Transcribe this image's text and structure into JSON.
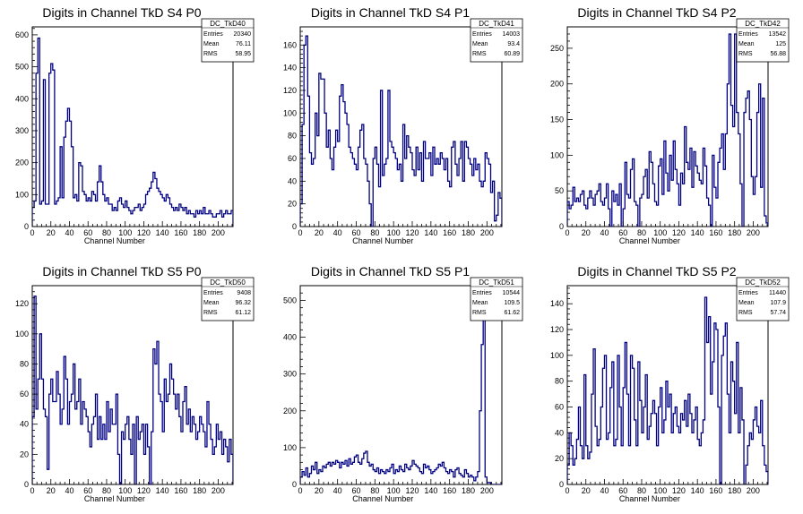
{
  "chart_data": [
    {
      "type": "histogram",
      "title": "Digits in Channel TkD S4 P0",
      "xlabel": "Channel Number",
      "xlim": [
        0,
        216
      ],
      "ylim": [
        0,
        625
      ],
      "xticks": [
        0,
        20,
        40,
        60,
        80,
        100,
        120,
        140,
        160,
        180,
        200
      ],
      "yticks": [
        0,
        100,
        200,
        300,
        400,
        500,
        600
      ],
      "stats": {
        "name": "DC_TkD40",
        "rows": [
          [
            "Entries",
            "20340"
          ],
          [
            "Mean",
            "76.11"
          ],
          [
            "RMS",
            "58.95"
          ]
        ]
      },
      "series": [
        {
          "color": "#000080",
          "bin_width": 2,
          "values": [
            60,
            80,
            480,
            590,
            70,
            80,
            460,
            70,
            70,
            480,
            510,
            490,
            70,
            80,
            90,
            250,
            90,
            280,
            330,
            370,
            330,
            250,
            90,
            100,
            80,
            200,
            190,
            110,
            100,
            80,
            90,
            80,
            110,
            100,
            80,
            140,
            190,
            140,
            100,
            80,
            90,
            70,
            70,
            50,
            60,
            50,
            80,
            90,
            70,
            60,
            80,
            60,
            50,
            40,
            50,
            60,
            60,
            70,
            50,
            60,
            70,
            100,
            110,
            120,
            140,
            170,
            150,
            120,
            110,
            100,
            90,
            80,
            100,
            90,
            70,
            60,
            50,
            60,
            50,
            70,
            60,
            50,
            60,
            40,
            50,
            40,
            40,
            30,
            50,
            40,
            50,
            40,
            60,
            40,
            40,
            50,
            40,
            30,
            30,
            40,
            40,
            50,
            30,
            40,
            50,
            40,
            40,
            50
          ]
        }
      ]
    },
    {
      "type": "histogram",
      "title": "Digits in Channel TkD S4 P1",
      "xlabel": "Channel Number",
      "xlim": [
        0,
        216
      ],
      "ylim": [
        0,
        176
      ],
      "xticks": [
        0,
        20,
        40,
        60,
        80,
        100,
        120,
        140,
        160,
        180,
        200
      ],
      "yticks": [
        0,
        20,
        40,
        60,
        80,
        100,
        120,
        140,
        160
      ],
      "stats": {
        "name": "DC_TkD41",
        "rows": [
          [
            "Entries",
            "14003"
          ],
          [
            "Mean",
            "93.4"
          ],
          [
            "RMS",
            "60.89"
          ]
        ]
      },
      "series": [
        {
          "color": "#000080",
          "bin_width": 2,
          "values": [
            20,
            90,
            160,
            168,
            115,
            65,
            55,
            60,
            100,
            80,
            135,
            130,
            130,
            100,
            70,
            85,
            60,
            50,
            70,
            85,
            75,
            115,
            125,
            110,
            100,
            90,
            70,
            65,
            60,
            55,
            50,
            70,
            85,
            90,
            60,
            55,
            40,
            20,
            0,
            60,
            70,
            55,
            35,
            120,
            45,
            55,
            60,
            120,
            75,
            70,
            65,
            60,
            50,
            55,
            40,
            90,
            60,
            80,
            70,
            65,
            50,
            45,
            70,
            50,
            65,
            40,
            75,
            60,
            60,
            65,
            45,
            70,
            55,
            60,
            55,
            65,
            60,
            50,
            60,
            40,
            35,
            70,
            75,
            55,
            45,
            60,
            75,
            40,
            75,
            70,
            60,
            55,
            45,
            60,
            50,
            55,
            40,
            35,
            40,
            65,
            60,
            55,
            30,
            40,
            5,
            10,
            30,
            25
          ]
        }
      ]
    },
    {
      "type": "histogram",
      "title": "Digits in Channel TkD S4 P2",
      "xlabel": "Channel Number",
      "xlim": [
        0,
        216
      ],
      "ylim": [
        0,
        280
      ],
      "xticks": [
        0,
        20,
        40,
        60,
        80,
        100,
        120,
        140,
        160,
        180,
        200
      ],
      "yticks": [
        0,
        50,
        100,
        150,
        200,
        250
      ],
      "stats": {
        "name": "DC_TkD42",
        "rows": [
          [
            "Entries",
            "13542"
          ],
          [
            "Mean",
            "125"
          ],
          [
            "RMS",
            "56.88"
          ]
        ]
      },
      "series": [
        {
          "color": "#000080",
          "bin_width": 2,
          "values": [
            35,
            25,
            30,
            55,
            35,
            40,
            35,
            45,
            50,
            30,
            25,
            40,
            50,
            40,
            30,
            45,
            50,
            60,
            35,
            30,
            40,
            60,
            25,
            0,
            50,
            35,
            45,
            30,
            60,
            0,
            25,
            90,
            45,
            40,
            80,
            95,
            35,
            30,
            0,
            40,
            45,
            70,
            80,
            40,
            105,
            90,
            60,
            35,
            30,
            85,
            95,
            45,
            120,
            75,
            50,
            100,
            65,
            120,
            80,
            60,
            30,
            75,
            60,
            140,
            90,
            80,
            110,
            55,
            105,
            85,
            75,
            65,
            60,
            110,
            85,
            40,
            30,
            0,
            100,
            55,
            40,
            90,
            110,
            130,
            80,
            130,
            200,
            270,
            170,
            140,
            270,
            160,
            130,
            60,
            0,
            160,
            180,
            190,
            150,
            70,
            45,
            70,
            160,
            200,
            55,
            180,
            15,
            5
          ]
        }
      ]
    },
    {
      "type": "histogram",
      "title": "Digits in Channel TkD S5 P0",
      "xlabel": "Channel Number",
      "xlim": [
        0,
        216
      ],
      "ylim": [
        0,
        132
      ],
      "xticks": [
        0,
        20,
        40,
        60,
        80,
        100,
        120,
        140,
        160,
        180,
        200
      ],
      "yticks": [
        0,
        20,
        40,
        60,
        80,
        100,
        120
      ],
      "stats": {
        "name": "DC_TkD50",
        "rows": [
          [
            "Entries",
            "9408"
          ],
          [
            "Mean",
            "96.32"
          ],
          [
            "RMS",
            "61.12"
          ]
        ]
      },
      "series": [
        {
          "color": "#000080",
          "bin_width": 2,
          "values": [
            45,
            125,
            50,
            70,
            100,
            70,
            50,
            45,
            10,
            60,
            70,
            55,
            55,
            75,
            60,
            40,
            50,
            85,
            70,
            40,
            55,
            60,
            80,
            50,
            55,
            70,
            40,
            55,
            50,
            45,
            35,
            25,
            40,
            45,
            60,
            30,
            45,
            30,
            40,
            30,
            55,
            35,
            50,
            40,
            40,
            60,
            20,
            0,
            35,
            30,
            40,
            45,
            30,
            20,
            40,
            0,
            45,
            30,
            35,
            40,
            20,
            40,
            25,
            0,
            35,
            90,
            80,
            95,
            60,
            55,
            35,
            70,
            55,
            60,
            80,
            70,
            60,
            50,
            60,
            45,
            35,
            55,
            65,
            40,
            50,
            35,
            45,
            40,
            30,
            35,
            45,
            40,
            35,
            25,
            55,
            40,
            30,
            20,
            25,
            40,
            30,
            35,
            20,
            30,
            25,
            15,
            30,
            20
          ]
        }
      ]
    },
    {
      "type": "histogram",
      "title": "Digits in Channel TkD S5 P1",
      "xlabel": "Channel Number",
      "xlim": [
        0,
        216
      ],
      "ylim": [
        0,
        540
      ],
      "xticks": [
        0,
        20,
        40,
        60,
        80,
        100,
        120,
        140,
        160,
        180,
        200
      ],
      "yticks": [
        0,
        100,
        200,
        300,
        400,
        500
      ],
      "stats": {
        "name": "DC_TkD51",
        "rows": [
          [
            "Entries",
            "10544"
          ],
          [
            "Mean",
            "109.5"
          ],
          [
            "RMS",
            "61.62"
          ]
        ]
      },
      "series": [
        {
          "color": "#000080",
          "bin_width": 2,
          "values": [
            20,
            35,
            25,
            45,
            20,
            30,
            50,
            40,
            60,
            30,
            40,
            35,
            50,
            45,
            55,
            60,
            50,
            60,
            55,
            65,
            60,
            45,
            60,
            55,
            65,
            50,
            70,
            55,
            60,
            75,
            80,
            60,
            55,
            70,
            85,
            90,
            60,
            50,
            55,
            40,
            35,
            45,
            30,
            40,
            35,
            30,
            40,
            35,
            45,
            55,
            30,
            40,
            35,
            50,
            40,
            35,
            55,
            45,
            40,
            50,
            65,
            55,
            50,
            45,
            35,
            30,
            55,
            45,
            50,
            40,
            30,
            35,
            40,
            45,
            55,
            50,
            60,
            45,
            35,
            30,
            40,
            35,
            20,
            40,
            45,
            30,
            25,
            20,
            40,
            30,
            20,
            25,
            20,
            10,
            20,
            35,
            200,
            380,
            450,
            20,
            5,
            5,
            0,
            0,
            0,
            0,
            0,
            0
          ]
        }
      ]
    },
    {
      "type": "histogram",
      "title": "Digits in Channel TkD S5 P2",
      "xlabel": "Channel Number",
      "xlim": [
        0,
        216
      ],
      "ylim": [
        0,
        154
      ],
      "xticks": [
        0,
        20,
        40,
        60,
        80,
        100,
        120,
        140,
        160,
        180,
        200
      ],
      "yticks": [
        0,
        20,
        40,
        60,
        80,
        100,
        120,
        140
      ],
      "stats": {
        "name": "DC_TkD52",
        "rows": [
          [
            "Entries",
            "11440"
          ],
          [
            "Mean",
            "107.9"
          ],
          [
            "RMS",
            "57.74"
          ]
        ]
      },
      "series": [
        {
          "color": "#000080",
          "bin_width": 2,
          "values": [
            15,
            40,
            30,
            15,
            20,
            35,
            60,
            30,
            20,
            85,
            30,
            20,
            25,
            70,
            105,
            45,
            30,
            35,
            60,
            90,
            100,
            35,
            40,
            75,
            95,
            30,
            35,
            100,
            60,
            30,
            75,
            110,
            70,
            30,
            100,
            90,
            50,
            30,
            95,
            65,
            40,
            60,
            85,
            35,
            45,
            55,
            65,
            55,
            30,
            60,
            75,
            40,
            50,
            80,
            60,
            70,
            40,
            55,
            60,
            45,
            40,
            55,
            50,
            65,
            45,
            70,
            55,
            40,
            50,
            60,
            35,
            30,
            40,
            50,
            145,
            110,
            130,
            70,
            95,
            125,
            120,
            60,
            0,
            100,
            115,
            125,
            70,
            40,
            95,
            80,
            55,
            110,
            40,
            75,
            50,
            0,
            15,
            30,
            40,
            35,
            50,
            60,
            45,
            40,
            65,
            30,
            15,
            10
          ]
        }
      ]
    }
  ]
}
